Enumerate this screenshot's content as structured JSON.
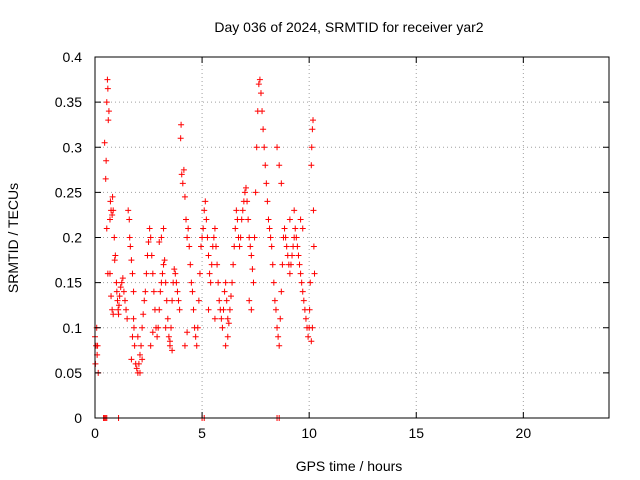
{
  "chart_data": {
    "type": "scatter",
    "title": "Day 036 of 2024, SRMTID for receiver yar2",
    "xlabel": "GPS time / hours",
    "ylabel": "SRMTID / TECUs",
    "xlim": [
      0,
      24
    ],
    "ylim": [
      0,
      0.4
    ],
    "xticks": [
      0,
      5,
      10,
      15,
      20
    ],
    "yticks": [
      0,
      0.05,
      0.1,
      0.15,
      0.2,
      0.25,
      0.3,
      0.35,
      0.4
    ],
    "xtick_labels": [
      "0",
      "5",
      "10",
      "15",
      "20"
    ],
    "ytick_labels": [
      "0",
      "0.05",
      "0.1",
      "0.15",
      "0.2",
      "0.25",
      "0.3",
      "0.35",
      "0.4"
    ],
    "grid": true,
    "marker": "+",
    "series": [
      {
        "name": "yar2",
        "color": "#ff0000",
        "points": [
          [
            0.0,
            0.09
          ],
          [
            0.02,
            0.06
          ],
          [
            0.05,
            0.08
          ],
          [
            0.08,
            0.1
          ],
          [
            0.1,
            0.07
          ],
          [
            0.12,
            0.08
          ],
          [
            0.15,
            0.05
          ],
          [
            0.4,
            0.0
          ],
          [
            0.45,
            0.0
          ],
          [
            0.5,
            0.0
          ],
          [
            0.55,
            0.0
          ],
          [
            1.1,
            0.0
          ],
          [
            5.0,
            0.0
          ],
          [
            5.1,
            0.0
          ],
          [
            8.5,
            0.0
          ],
          [
            8.6,
            0.0
          ],
          [
            0.45,
            0.305
          ],
          [
            0.5,
            0.265
          ],
          [
            0.52,
            0.285
          ],
          [
            0.55,
            0.35
          ],
          [
            0.58,
            0.375
          ],
          [
            0.6,
            0.365
          ],
          [
            0.62,
            0.33
          ],
          [
            0.65,
            0.34
          ],
          [
            0.55,
            0.21
          ],
          [
            0.6,
            0.16
          ],
          [
            0.7,
            0.22
          ],
          [
            0.72,
            0.24
          ],
          [
            0.75,
            0.23
          ],
          [
            0.8,
            0.225
          ],
          [
            0.82,
            0.245
          ],
          [
            0.85,
            0.23
          ],
          [
            0.9,
            0.2
          ],
          [
            0.92,
            0.175
          ],
          [
            0.95,
            0.18
          ],
          [
            1.0,
            0.15
          ],
          [
            1.02,
            0.14
          ],
          [
            1.05,
            0.13
          ],
          [
            1.08,
            0.12
          ],
          [
            1.1,
            0.115
          ],
          [
            1.12,
            0.125
          ],
          [
            1.15,
            0.135
          ],
          [
            1.2,
            0.145
          ],
          [
            1.25,
            0.15
          ],
          [
            1.3,
            0.155
          ],
          [
            1.35,
            0.14
          ],
          [
            1.4,
            0.13
          ],
          [
            1.45,
            0.12
          ],
          [
            1.5,
            0.11
          ],
          [
            0.7,
            0.16
          ],
          [
            0.75,
            0.135
          ],
          [
            0.8,
            0.12
          ],
          [
            0.85,
            0.115
          ],
          [
            1.55,
            0.23
          ],
          [
            1.6,
            0.22
          ],
          [
            1.62,
            0.2
          ],
          [
            1.65,
            0.19
          ],
          [
            1.7,
            0.175
          ],
          [
            1.75,
            0.16
          ],
          [
            1.8,
            0.14
          ],
          [
            1.82,
            0.1
          ],
          [
            1.85,
            0.08
          ],
          [
            1.9,
            0.06
          ],
          [
            1.95,
            0.055
          ],
          [
            2.0,
            0.05
          ],
          [
            2.05,
            0.06
          ],
          [
            2.1,
            0.07
          ],
          [
            2.15,
            0.08
          ],
          [
            2.2,
            0.1
          ],
          [
            2.25,
            0.115
          ],
          [
            2.3,
            0.13
          ],
          [
            2.35,
            0.14
          ],
          [
            2.4,
            0.16
          ],
          [
            2.45,
            0.18
          ],
          [
            2.5,
            0.195
          ],
          [
            2.55,
            0.21
          ],
          [
            1.7,
            0.065
          ],
          [
            1.75,
            0.09
          ],
          [
            1.8,
            0.11
          ],
          [
            2.0,
            0.09
          ],
          [
            2.1,
            0.05
          ],
          [
            2.2,
            0.065
          ],
          [
            2.6,
            0.2
          ],
          [
            2.65,
            0.18
          ],
          [
            2.7,
            0.16
          ],
          [
            2.75,
            0.14
          ],
          [
            2.8,
            0.12
          ],
          [
            2.85,
            0.1
          ],
          [
            2.9,
            0.09
          ],
          [
            2.95,
            0.1
          ],
          [
            3.0,
            0.12
          ],
          [
            3.05,
            0.14
          ],
          [
            3.1,
            0.15
          ],
          [
            3.15,
            0.16
          ],
          [
            3.2,
            0.17
          ],
          [
            3.25,
            0.175
          ],
          [
            3.3,
            0.15
          ],
          [
            3.35,
            0.13
          ],
          [
            3.4,
            0.11
          ],
          [
            3.45,
            0.09
          ],
          [
            3.5,
            0.08
          ],
          [
            3.55,
            0.1
          ],
          [
            3.6,
            0.13
          ],
          [
            3.65,
            0.15
          ],
          [
            3.7,
            0.165
          ],
          [
            3.75,
            0.16
          ],
          [
            3.8,
            0.15
          ],
          [
            3.85,
            0.14
          ],
          [
            3.9,
            0.13
          ],
          [
            3.95,
            0.12
          ],
          [
            2.6,
            0.08
          ],
          [
            2.7,
            0.095
          ],
          [
            3.0,
            0.195
          ],
          [
            3.1,
            0.2
          ],
          [
            3.2,
            0.21
          ],
          [
            3.3,
            0.1
          ],
          [
            3.5,
            0.085
          ],
          [
            3.6,
            0.075
          ],
          [
            4.0,
            0.31
          ],
          [
            4.02,
            0.325
          ],
          [
            4.05,
            0.27
          ],
          [
            4.1,
            0.26
          ],
          [
            4.15,
            0.275
          ],
          [
            4.2,
            0.245
          ],
          [
            4.25,
            0.22
          ],
          [
            4.3,
            0.2
          ],
          [
            4.35,
            0.21
          ],
          [
            4.4,
            0.19
          ],
          [
            4.45,
            0.17
          ],
          [
            4.5,
            0.15
          ],
          [
            4.55,
            0.14
          ],
          [
            4.6,
            0.12
          ],
          [
            4.65,
            0.1
          ],
          [
            4.7,
            0.09
          ],
          [
            4.75,
            0.08
          ],
          [
            4.8,
            0.1
          ],
          [
            4.85,
            0.13
          ],
          [
            4.9,
            0.16
          ],
          [
            4.95,
            0.19
          ],
          [
            5.0,
            0.2
          ],
          [
            5.05,
            0.21
          ],
          [
            5.1,
            0.23
          ],
          [
            5.15,
            0.24
          ],
          [
            5.2,
            0.22
          ],
          [
            5.25,
            0.2
          ],
          [
            5.3,
            0.18
          ],
          [
            5.35,
            0.16
          ],
          [
            5.4,
            0.15
          ],
          [
            5.45,
            0.17
          ],
          [
            5.5,
            0.19
          ],
          [
            5.55,
            0.2
          ],
          [
            5.6,
            0.21
          ],
          [
            5.65,
            0.19
          ],
          [
            5.7,
            0.17
          ],
          [
            5.75,
            0.15
          ],
          [
            5.8,
            0.13
          ],
          [
            5.85,
            0.12
          ],
          [
            5.9,
            0.11
          ],
          [
            5.95,
            0.1
          ],
          [
            6.0,
            0.12
          ],
          [
            6.05,
            0.14
          ],
          [
            6.1,
            0.15
          ],
          [
            6.15,
            0.13
          ],
          [
            6.2,
            0.11
          ],
          [
            6.25,
            0.105
          ],
          [
            6.3,
            0.12
          ],
          [
            6.35,
            0.135
          ],
          [
            6.4,
            0.15
          ],
          [
            6.45,
            0.17
          ],
          [
            6.5,
            0.19
          ],
          [
            6.55,
            0.21
          ],
          [
            6.6,
            0.23
          ],
          [
            6.65,
            0.22
          ],
          [
            6.7,
            0.2
          ],
          [
            6.75,
            0.19
          ],
          [
            6.8,
            0.2
          ],
          [
            6.85,
            0.22
          ],
          [
            6.9,
            0.23
          ],
          [
            6.95,
            0.24
          ],
          [
            7.0,
            0.25
          ],
          [
            7.05,
            0.255
          ],
          [
            7.1,
            0.24
          ],
          [
            7.15,
            0.22
          ],
          [
            7.2,
            0.2
          ],
          [
            7.25,
            0.19
          ],
          [
            7.3,
            0.18
          ],
          [
            7.35,
            0.165
          ],
          [
            7.4,
            0.15
          ],
          [
            7.45,
            0.2
          ],
          [
            7.5,
            0.25
          ],
          [
            7.55,
            0.3
          ],
          [
            7.6,
            0.34
          ],
          [
            7.65,
            0.37
          ],
          [
            7.7,
            0.375
          ],
          [
            7.75,
            0.36
          ],
          [
            7.8,
            0.34
          ],
          [
            7.85,
            0.32
          ],
          [
            7.9,
            0.3
          ],
          [
            7.95,
            0.28
          ],
          [
            8.0,
            0.26
          ],
          [
            8.05,
            0.24
          ],
          [
            8.1,
            0.22
          ],
          [
            8.15,
            0.21
          ],
          [
            8.2,
            0.2
          ],
          [
            8.25,
            0.19
          ],
          [
            8.3,
            0.17
          ],
          [
            8.35,
            0.15
          ],
          [
            8.4,
            0.13
          ],
          [
            8.45,
            0.12
          ],
          [
            8.5,
            0.1
          ],
          [
            8.55,
            0.09
          ],
          [
            8.6,
            0.08
          ],
          [
            8.65,
            0.11
          ],
          [
            8.7,
            0.14
          ],
          [
            8.75,
            0.17
          ],
          [
            8.8,
            0.2
          ],
          [
            8.85,
            0.21
          ],
          [
            8.9,
            0.2
          ],
          [
            8.95,
            0.19
          ],
          [
            9.0,
            0.18
          ],
          [
            9.05,
            0.17
          ],
          [
            9.1,
            0.16
          ],
          [
            9.15,
            0.17
          ],
          [
            9.2,
            0.18
          ],
          [
            9.25,
            0.19
          ],
          [
            9.3,
            0.2
          ],
          [
            9.35,
            0.21
          ],
          [
            9.4,
            0.2
          ],
          [
            9.45,
            0.19
          ],
          [
            9.5,
            0.18
          ],
          [
            9.55,
            0.17
          ],
          [
            9.6,
            0.16
          ],
          [
            9.65,
            0.15
          ],
          [
            9.7,
            0.14
          ],
          [
            9.75,
            0.13
          ],
          [
            9.8,
            0.12
          ],
          [
            9.85,
            0.11
          ],
          [
            9.9,
            0.1
          ],
          [
            9.95,
            0.09
          ],
          [
            10.0,
            0.1
          ],
          [
            10.02,
            0.12
          ],
          [
            10.05,
            0.15
          ],
          [
            10.1,
            0.28
          ],
          [
            10.12,
            0.3
          ],
          [
            10.15,
            0.32
          ],
          [
            10.18,
            0.33
          ],
          [
            10.2,
            0.23
          ],
          [
            10.22,
            0.19
          ],
          [
            10.25,
            0.16
          ],
          [
            10.1,
            0.085
          ],
          [
            10.15,
            0.1
          ],
          [
            4.2,
            0.08
          ],
          [
            4.3,
            0.095
          ],
          [
            5.3,
            0.12
          ],
          [
            5.6,
            0.11
          ],
          [
            6.1,
            0.08
          ],
          [
            6.2,
            0.09
          ],
          [
            7.2,
            0.13
          ],
          [
            7.3,
            0.12
          ],
          [
            8.5,
            0.3
          ],
          [
            8.6,
            0.28
          ],
          [
            8.7,
            0.26
          ],
          [
            9.1,
            0.22
          ],
          [
            9.3,
            0.23
          ],
          [
            9.6,
            0.22
          ],
          [
            9.7,
            0.21
          ]
        ]
      }
    ]
  }
}
